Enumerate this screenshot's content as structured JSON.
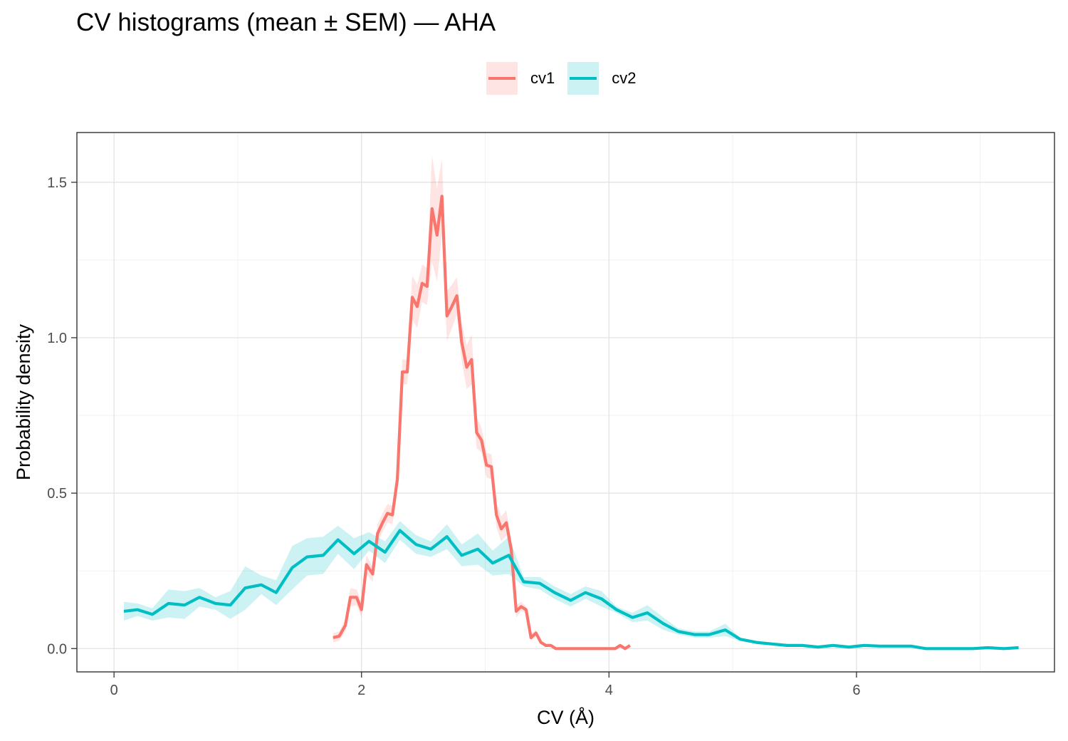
{
  "chart_data": {
    "type": "line",
    "title": "CV histograms (mean ± SEM) — AHA",
    "xlabel": "CV (Å)",
    "ylabel": "Probability density",
    "xlim": [
      -0.3,
      7.6
    ],
    "ylim": [
      -0.075,
      1.66
    ],
    "x_ticks": [
      0,
      2,
      4,
      6
    ],
    "y_ticks": [
      0.0,
      0.5,
      1.0,
      1.5
    ],
    "x_tick_labels": [
      "0",
      "2",
      "4",
      "6"
    ],
    "y_tick_labels": [
      "0.0",
      "0.5",
      "1.0",
      "1.5"
    ],
    "grid": true,
    "legend_position": "top",
    "series": [
      {
        "name": "cv1",
        "color": "#F8766D",
        "band_color": "#F8766D",
        "points": [
          [
            1.77,
            0.035,
            0.015
          ],
          [
            1.82,
            0.04,
            0.015
          ],
          [
            1.87,
            0.075,
            0.02
          ],
          [
            1.91,
            0.165,
            0.03
          ],
          [
            1.96,
            0.165,
            0.025
          ],
          [
            2.0,
            0.125,
            0.025
          ],
          [
            2.04,
            0.27,
            0.03
          ],
          [
            2.09,
            0.24,
            0.025
          ],
          [
            2.13,
            0.37,
            0.03
          ],
          [
            2.17,
            0.405,
            0.03
          ],
          [
            2.21,
            0.435,
            0.03
          ],
          [
            2.25,
            0.43,
            0.03
          ],
          [
            2.29,
            0.545,
            0.035
          ],
          [
            2.33,
            0.89,
            0.04
          ],
          [
            2.37,
            0.89,
            0.04
          ],
          [
            2.41,
            1.13,
            0.07
          ],
          [
            2.45,
            1.1,
            0.07
          ],
          [
            2.49,
            1.175,
            0.06
          ],
          [
            2.53,
            1.165,
            0.06
          ],
          [
            2.57,
            1.415,
            0.17
          ],
          [
            2.61,
            1.33,
            0.15
          ],
          [
            2.65,
            1.455,
            0.12
          ],
          [
            2.69,
            1.07,
            0.08
          ],
          [
            2.73,
            1.1,
            0.07
          ],
          [
            2.77,
            1.135,
            0.06
          ],
          [
            2.81,
            0.985,
            0.06
          ],
          [
            2.85,
            0.905,
            0.07
          ],
          [
            2.89,
            0.93,
            0.08
          ],
          [
            2.93,
            0.695,
            0.05
          ],
          [
            2.97,
            0.67,
            0.04
          ],
          [
            3.01,
            0.59,
            0.04
          ],
          [
            3.05,
            0.585,
            0.04
          ],
          [
            3.09,
            0.43,
            0.04
          ],
          [
            3.13,
            0.385,
            0.04
          ],
          [
            3.17,
            0.405,
            0.04
          ],
          [
            3.21,
            0.32,
            0.03
          ],
          [
            3.25,
            0.12,
            0.02
          ],
          [
            3.29,
            0.135,
            0.015
          ],
          [
            3.33,
            0.125,
            0.01
          ],
          [
            3.37,
            0.035,
            0.01
          ],
          [
            3.41,
            0.05,
            0.01
          ],
          [
            3.45,
            0.02,
            0.005
          ],
          [
            3.49,
            0.01,
            0.005
          ],
          [
            3.53,
            0.01,
            0.005
          ],
          [
            3.57,
            0.0,
            0.0
          ],
          [
            3.7,
            0.0,
            0.0
          ],
          [
            3.85,
            0.0,
            0.0
          ],
          [
            4.0,
            0.0,
            0.0
          ],
          [
            4.05,
            0.0,
            0.0
          ],
          [
            4.09,
            0.01,
            0.003
          ],
          [
            4.13,
            0.0,
            0.0
          ],
          [
            4.17,
            0.01,
            0.003
          ]
        ]
      },
      {
        "name": "cv2",
        "color": "#00BFC4",
        "band_color": "#00BFC4",
        "points": [
          [
            0.08,
            0.12,
            0.03
          ],
          [
            0.19,
            0.125,
            0.02
          ],
          [
            0.31,
            0.11,
            0.02
          ],
          [
            0.44,
            0.145,
            0.045
          ],
          [
            0.57,
            0.14,
            0.045
          ],
          [
            0.69,
            0.165,
            0.03
          ],
          [
            0.82,
            0.145,
            0.02
          ],
          [
            0.94,
            0.14,
            0.045
          ],
          [
            1.06,
            0.195,
            0.07
          ],
          [
            1.19,
            0.205,
            0.03
          ],
          [
            1.31,
            0.18,
            0.04
          ],
          [
            1.44,
            0.26,
            0.07
          ],
          [
            1.56,
            0.295,
            0.06
          ],
          [
            1.69,
            0.3,
            0.06
          ],
          [
            1.81,
            0.35,
            0.045
          ],
          [
            1.94,
            0.305,
            0.05
          ],
          [
            2.06,
            0.345,
            0.03
          ],
          [
            2.19,
            0.31,
            0.035
          ],
          [
            2.31,
            0.38,
            0.03
          ],
          [
            2.44,
            0.335,
            0.03
          ],
          [
            2.56,
            0.32,
            0.025
          ],
          [
            2.69,
            0.36,
            0.04
          ],
          [
            2.81,
            0.3,
            0.035
          ],
          [
            2.94,
            0.32,
            0.05
          ],
          [
            3.06,
            0.275,
            0.04
          ],
          [
            3.19,
            0.3,
            0.06
          ],
          [
            3.31,
            0.215,
            0.015
          ],
          [
            3.44,
            0.21,
            0.02
          ],
          [
            3.56,
            0.18,
            0.02
          ],
          [
            3.69,
            0.155,
            0.02
          ],
          [
            3.81,
            0.18,
            0.02
          ],
          [
            3.94,
            0.16,
            0.025
          ],
          [
            4.06,
            0.125,
            0.01
          ],
          [
            4.19,
            0.1,
            0.015
          ],
          [
            4.31,
            0.115,
            0.025
          ],
          [
            4.44,
            0.08,
            0.02
          ],
          [
            4.56,
            0.055,
            0.01
          ],
          [
            4.69,
            0.045,
            0.01
          ],
          [
            4.81,
            0.045,
            0.01
          ],
          [
            4.94,
            0.06,
            0.02
          ],
          [
            5.06,
            0.03,
            0.005
          ],
          [
            5.19,
            0.02,
            0.003
          ],
          [
            5.31,
            0.015,
            0.003
          ],
          [
            5.44,
            0.01,
            0.003
          ],
          [
            5.56,
            0.01,
            0.003
          ],
          [
            5.69,
            0.005,
            0.003
          ],
          [
            5.81,
            0.01,
            0.003
          ],
          [
            5.94,
            0.005,
            0.003
          ],
          [
            6.06,
            0.01,
            0.003
          ],
          [
            6.19,
            0.008,
            0.003
          ],
          [
            6.31,
            0.008,
            0.003
          ],
          [
            6.44,
            0.008,
            0.003
          ],
          [
            6.56,
            0.0,
            0.0
          ],
          [
            6.69,
            0.0,
            0.0
          ],
          [
            6.81,
            0.0,
            0.0
          ],
          [
            6.94,
            0.0,
            0.0
          ],
          [
            7.06,
            0.003,
            0.002
          ],
          [
            7.19,
            0.0,
            0.0
          ],
          [
            7.31,
            0.003,
            0.002
          ]
        ]
      }
    ]
  }
}
